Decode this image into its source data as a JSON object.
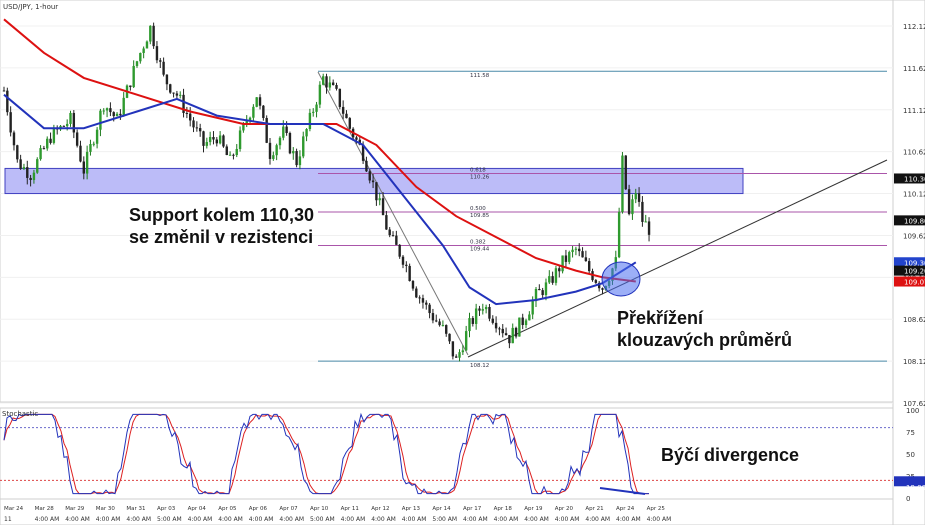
{
  "title": "USD/JPY, 1-hour",
  "chart_data": {
    "type": "line",
    "title": "USD/JPY, 1-hour",
    "ylim": [
      107.62,
      112.62
    ],
    "y_ticks": [
      "112.12",
      "111.62",
      "111.12",
      "110.62",
      "110.12",
      "109.62",
      "109.12",
      "108.62",
      "108.12",
      "107.62"
    ],
    "series": [
      {
        "name": "USD/JPY",
        "color": "#222222",
        "points": [
          [
            0,
            111.35
          ],
          [
            2,
            110.5
          ],
          [
            4,
            110.35
          ],
          [
            7,
            110.8
          ],
          [
            10,
            111.0
          ],
          [
            12,
            110.4
          ],
          [
            15,
            111.2
          ],
          [
            17,
            111.0
          ],
          [
            20,
            111.7
          ],
          [
            22,
            112.1
          ],
          [
            24,
            111.5
          ],
          [
            26,
            111.3
          ],
          [
            28,
            111.0
          ],
          [
            30,
            110.7
          ],
          [
            32,
            110.8
          ],
          [
            34,
            110.5
          ],
          [
            36,
            110.9
          ],
          [
            38,
            111.3
          ],
          [
            40,
            110.6
          ],
          [
            42,
            110.85
          ],
          [
            44,
            110.5
          ],
          [
            46,
            111.0
          ],
          [
            48,
            111.5
          ],
          [
            50,
            111.3
          ],
          [
            52,
            110.9
          ],
          [
            54,
            110.6
          ],
          [
            56,
            110.1
          ],
          [
            58,
            109.6
          ],
          [
            60,
            109.35
          ],
          [
            62,
            108.95
          ],
          [
            64,
            108.7
          ],
          [
            66,
            108.5
          ],
          [
            68,
            108.12
          ],
          [
            70,
            108.55
          ],
          [
            72,
            108.8
          ],
          [
            74,
            108.6
          ],
          [
            76,
            108.4
          ],
          [
            78,
            108.6
          ],
          [
            80,
            108.9
          ],
          [
            82,
            109.05
          ],
          [
            84,
            109.3
          ],
          [
            86,
            109.45
          ],
          [
            88,
            109.2
          ],
          [
            90,
            109.0
          ],
          [
            92,
            109.3
          ],
          [
            93,
            110.5
          ],
          [
            94,
            109.85
          ],
          [
            95,
            110.15
          ],
          [
            96,
            109.8
          ],
          [
            97,
            109.7
          ]
        ]
      },
      {
        "name": "MA fast",
        "color": "#2233bb",
        "points": [
          [
            0,
            111.3
          ],
          [
            6,
            110.9
          ],
          [
            12,
            110.9
          ],
          [
            20,
            111.1
          ],
          [
            26,
            111.25
          ],
          [
            32,
            111.05
          ],
          [
            40,
            110.95
          ],
          [
            48,
            110.95
          ],
          [
            54,
            110.7
          ],
          [
            60,
            110.1
          ],
          [
            66,
            109.5
          ],
          [
            70,
            109.0
          ],
          [
            74,
            108.8
          ],
          [
            80,
            108.85
          ],
          [
            86,
            108.95
          ],
          [
            90,
            109.05
          ],
          [
            95,
            109.3
          ]
        ]
      },
      {
        "name": "MA slow",
        "color": "#dd1111",
        "points": [
          [
            0,
            112.2
          ],
          [
            6,
            111.8
          ],
          [
            12,
            111.5
          ],
          [
            20,
            111.3
          ],
          [
            28,
            111.1
          ],
          [
            36,
            110.95
          ],
          [
            44,
            110.95
          ],
          [
            50,
            110.95
          ],
          [
            56,
            110.7
          ],
          [
            62,
            110.2
          ],
          [
            68,
            109.85
          ],
          [
            74,
            109.6
          ],
          [
            80,
            109.35
          ],
          [
            86,
            109.2
          ],
          [
            90,
            109.12
          ],
          [
            95,
            109.07
          ]
        ]
      }
    ],
    "fibonacci": [
      {
        "label": "111.58",
        "value": 111.58
      },
      {
        "label": "0.618",
        "value": 110.36,
        "sublabel": "110.26"
      },
      {
        "label": "0.500",
        "value": 109.9,
        "sublabel": "109.85"
      },
      {
        "label": "0.382",
        "value": 109.5,
        "sublabel": "109.44"
      },
      {
        "label": "108.12",
        "value": 108.12
      }
    ],
    "price_tags": [
      {
        "text": "110.30",
        "bg": "#111111",
        "value": 110.3
      },
      {
        "text": "109.80",
        "bg": "#111111",
        "value": 109.8
      },
      {
        "text": "109.30",
        "bg": "#2244cc",
        "value": 109.3
      },
      {
        "text": "109.20",
        "bg": "#111111",
        "value": 109.2
      },
      {
        "text": "109.07",
        "bg": "#dd1111",
        "value": 109.07
      }
    ],
    "support_zone": [
      110.12,
      110.42
    ],
    "stochastic": {
      "title": "Stochastic",
      "levels": [
        "100",
        "75",
        "50",
        "25",
        "19.00",
        "0"
      ],
      "overbought": 80,
      "oversold": 20,
      "current": "19.00",
      "colors": {
        "k": "#2233bb",
        "d": "#dd2222",
        "divergence": "#2233bb"
      }
    },
    "x_dates": [
      "Mar 24",
      "Mar 28",
      "Mar 29",
      "Mar 30",
      "Mar 31",
      "Apr 03",
      "Apr 04",
      "Apr 05",
      "Apr 06",
      "Apr 07",
      "Apr 10",
      "Apr 11",
      "Apr 12",
      "Apr 13",
      "Apr 14",
      "Apr 17",
      "Apr 18",
      "Apr 19",
      "Apr 20",
      "Apr 21",
      "Apr 24",
      "Apr 25"
    ],
    "x_times": [
      "11",
      "4:00 AM",
      "4:00 AM",
      "4:00 AM",
      "4:00 AM",
      "5:00 AM",
      "4:00 AM",
      "4:00 AM",
      "4:00 AM",
      "4:00 AM",
      "5:00 AM",
      "4:00 AM",
      "4:00 AM",
      "4:00 AM",
      "5:00 AM",
      "4:00 AM",
      "4:00 AM",
      "4:00 AM",
      "4:00 AM",
      "4:00 AM",
      "4:00 AM",
      "4:00 AM"
    ]
  },
  "annotations": {
    "support_line1": "Support kolem 110,30",
    "support_line2": "se změnil v rezistenci",
    "crossover_line1": "Překřížení",
    "crossover_line2": "klouzavých průměrů",
    "divergence": "Býčí divergence"
  }
}
